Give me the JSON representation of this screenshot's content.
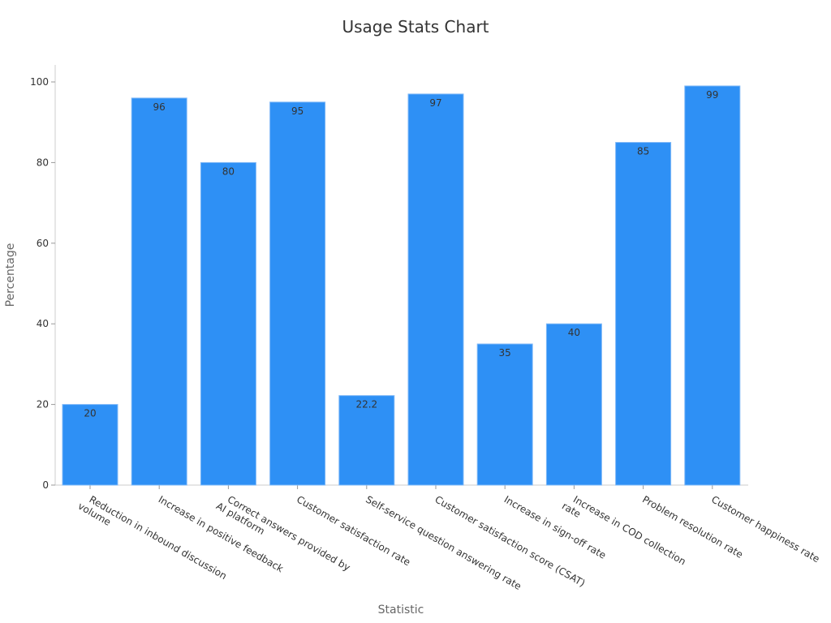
{
  "chart_data": {
    "type": "bar",
    "title": "Usage Stats Chart",
    "xlabel": "Statistic",
    "ylabel": "Percentage",
    "ylim": [
      0,
      100
    ],
    "yticks": [
      0,
      20,
      40,
      60,
      80,
      100
    ],
    "grid": false,
    "bar_color": "#2e90f5",
    "categories": [
      [
        "Reduction in inbound discussion",
        "volume"
      ],
      [
        "Increase in positive feedback"
      ],
      [
        "Correct answers provided by",
        "AI platform"
      ],
      [
        "Customer satisfaction rate"
      ],
      [
        "Self-service question answering rate"
      ],
      [
        "Customer satisfaction score (CSAT)"
      ],
      [
        "Increase in sign-off rate"
      ],
      [
        "Increase in COD collection",
        "rate"
      ],
      [
        "Problem resolution rate"
      ],
      [
        "Customer happiness rate"
      ]
    ],
    "values": [
      20,
      96,
      80,
      95,
      22.2,
      97,
      35,
      40,
      85,
      99
    ]
  }
}
